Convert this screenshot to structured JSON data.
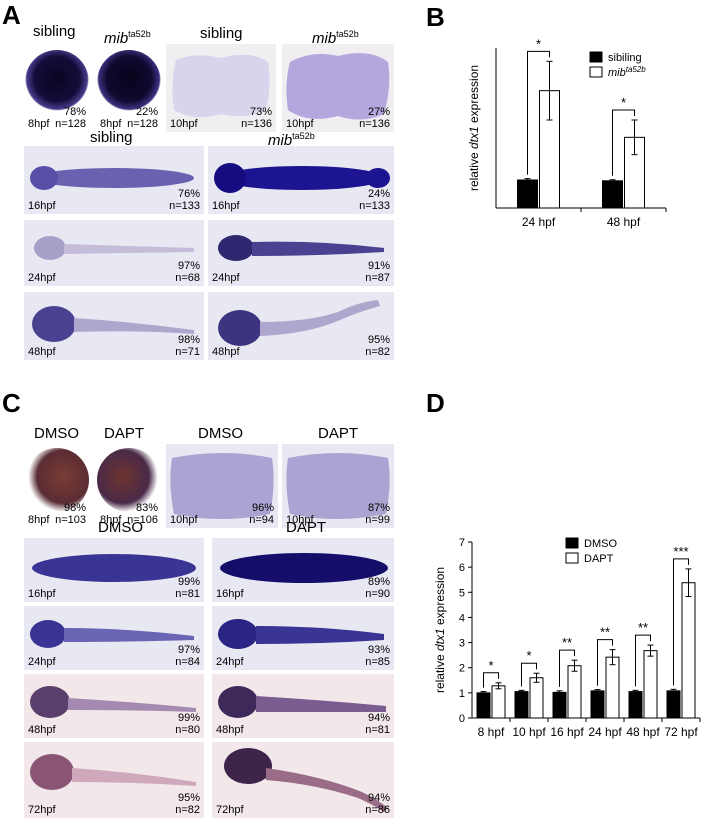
{
  "panelA": {
    "letter": "A",
    "top_headers": [
      {
        "text": "sibling",
        "mutant": false
      },
      {
        "text": "mib",
        "sup": "ta52b",
        "mutant": true
      },
      {
        "text": "sibling",
        "mutant": false
      },
      {
        "text": "mib",
        "sup": "ta52b",
        "mutant": true
      }
    ],
    "row_headers": [
      {
        "text": "sibling",
        "mutant": false
      },
      {
        "text": "mib",
        "sup": "ta52b",
        "mutant": true
      }
    ],
    "top_images": [
      {
        "stage": "8hpf",
        "pct": "78%",
        "n": "n=128"
      },
      {
        "stage": "8hpf",
        "pct": "22%",
        "n": "n=128"
      },
      {
        "stage": "10hpf",
        "pct": "73%",
        "n": "n=136"
      },
      {
        "stage": "10hpf",
        "pct": "27%",
        "n": "n=136"
      }
    ],
    "rows": [
      {
        "left": {
          "stage": "16hpf",
          "pct": "76%",
          "n": "n=133"
        },
        "right": {
          "stage": "16hpf",
          "pct": "24%",
          "n": "n=133"
        }
      },
      {
        "left": {
          "stage": "24hpf",
          "pct": "97%",
          "n": "n=68"
        },
        "right": {
          "stage": "24hpf",
          "pct": "91%",
          "n": "n=87"
        }
      },
      {
        "left": {
          "stage": "48hpf",
          "pct": "98%",
          "n": "n=71"
        },
        "right": {
          "stage": "48hpf",
          "pct": "95%",
          "n": "n=82"
        }
      }
    ]
  },
  "panelB": {
    "letter": "B",
    "legend": [
      {
        "label": "sibiling",
        "fill": "#000000"
      },
      {
        "label": "mib",
        "sup": "ta52b",
        "fill": "#ffffff"
      }
    ]
  },
  "panelC": {
    "letter": "C",
    "top_headers": [
      "DMSO",
      "DAPT",
      "DMSO",
      "DAPT"
    ],
    "row_headers": [
      "DMSO",
      "DAPT"
    ],
    "top_images": [
      {
        "stage": "8hpf",
        "pct": "98%",
        "n": "n=103"
      },
      {
        "stage": "8hpf",
        "pct": "83%",
        "n": "n=106"
      },
      {
        "stage": "10hpf",
        "pct": "96%",
        "n": "n=94"
      },
      {
        "stage": "10hpf",
        "pct": "87%",
        "n": "n=99"
      }
    ],
    "rows": [
      {
        "left": {
          "stage": "16hpf",
          "pct": "99%",
          "n": "n=81"
        },
        "right": {
          "stage": "16hpf",
          "pct": "89%",
          "n": "n=90"
        }
      },
      {
        "left": {
          "stage": "24hpf",
          "pct": "97%",
          "n": "n=84"
        },
        "right": {
          "stage": "24hpf",
          "pct": "93%",
          "n": "n=85"
        }
      },
      {
        "left": {
          "stage": "48hpf",
          "pct": "99%",
          "n": "n=80"
        },
        "right": {
          "stage": "48hpf",
          "pct": "94%",
          "n": "n=81"
        }
      },
      {
        "left": {
          "stage": "72hpf",
          "pct": "95%",
          "n": "n=82"
        },
        "right": {
          "stage": "72hpf",
          "pct": "94%",
          "n": "n=86"
        }
      }
    ]
  },
  "panelD": {
    "letter": "D",
    "legend": [
      {
        "label": "DMSO",
        "fill": "#000000"
      },
      {
        "label": "DAPT",
        "fill": "#ffffff"
      }
    ]
  },
  "chart_data": [
    {
      "panel": "B",
      "type": "bar",
      "ylabel": "relative dtx1 expression",
      "categories": [
        "24 hpf",
        "48 hpf"
      ],
      "series": [
        {
          "name": "sibiling",
          "values": [
            1.05,
            1.02
          ],
          "errors": [
            0.05,
            0.04
          ]
        },
        {
          "name": "mibta52b",
          "values": [
            4.4,
            2.65
          ],
          "errors": [
            1.1,
            0.65
          ]
        }
      ],
      "significance": [
        "*",
        "*"
      ],
      "ylim": [
        0,
        6
      ],
      "yticks": [],
      "grid": false,
      "legend": "top-right"
    },
    {
      "panel": "D",
      "type": "bar",
      "ylabel": "relative dtx1 expression",
      "categories": [
        "8 hpf",
        "10 hpf",
        "16 hpf",
        "24 hpf",
        "48 hpf",
        "72 hpf"
      ],
      "series": [
        {
          "name": "DMSO",
          "values": [
            1.0,
            1.05,
            1.02,
            1.08,
            1.05,
            1.08
          ],
          "errors": [
            0.05,
            0.05,
            0.06,
            0.05,
            0.05,
            0.06
          ]
        },
        {
          "name": "DAPT",
          "values": [
            1.28,
            1.6,
            2.08,
            2.42,
            2.68,
            5.38
          ],
          "errors": [
            0.12,
            0.18,
            0.22,
            0.3,
            0.22,
            0.55
          ]
        }
      ],
      "significance": [
        "*",
        "*",
        "**",
        "**",
        "**",
        "***"
      ],
      "ylim": [
        0,
        7
      ],
      "yticks": [
        0,
        1,
        2,
        3,
        4,
        5,
        6,
        7
      ],
      "grid": false,
      "legend": "top-center"
    }
  ]
}
